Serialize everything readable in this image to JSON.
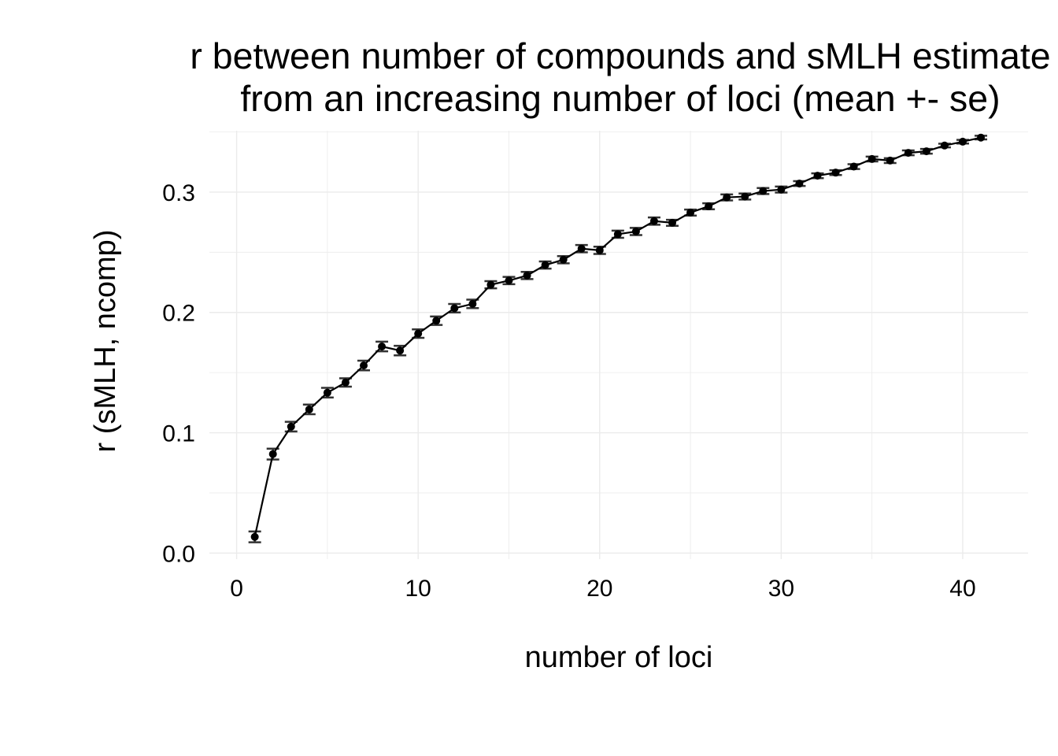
{
  "chart_data": {
    "type": "line",
    "title_lines": [
      "r between number of compounds and sMLH estimate",
      "from an increasing number of loci (mean +- se)"
    ],
    "xlabel": "number of loci",
    "ylabel": "r (sMLH, ncomp)",
    "xlim": [
      -1.5,
      43.6
    ],
    "ylim": [
      -0.005,
      0.351
    ],
    "x_ticks": [
      0,
      10,
      20,
      30,
      40
    ],
    "x_tick_labels": [
      "0",
      "10",
      "20",
      "30",
      "40"
    ],
    "y_ticks": [
      0.0,
      0.1,
      0.2,
      0.3
    ],
    "y_tick_labels": [
      "0.0",
      "0.1",
      "0.2",
      "0.3"
    ],
    "grid": true,
    "legend": "none",
    "colors": {
      "line": "#000000",
      "points": "#000000",
      "error_bars": "#333333",
      "grid": "#ebebeb"
    },
    "series": [
      {
        "x": [
          1,
          2,
          3,
          4,
          5,
          6,
          7,
          8,
          9,
          10,
          11,
          12,
          13,
          14,
          15,
          16,
          17,
          18,
          19,
          20,
          21,
          22,
          23,
          24,
          25,
          26,
          27,
          28,
          29,
          30,
          31,
          32,
          33,
          34,
          35,
          36,
          37,
          38,
          39,
          40,
          41
        ],
        "values": [
          0.0135,
          0.0823,
          0.1051,
          0.1194,
          0.1333,
          0.1418,
          0.1559,
          0.1717,
          0.1683,
          0.1824,
          0.1931,
          0.2035,
          0.2071,
          0.223,
          0.2265,
          0.2307,
          0.2394,
          0.2438,
          0.253,
          0.2516,
          0.265,
          0.2673,
          0.2759,
          0.2745,
          0.283,
          0.2882,
          0.2956,
          0.2963,
          0.3009,
          0.3021,
          0.3071,
          0.3136,
          0.3162,
          0.3212,
          0.3275,
          0.3262,
          0.3326,
          0.3339,
          0.3387,
          0.3419,
          0.3453
        ],
        "se": [
          0.0045,
          0.0045,
          0.004,
          0.004,
          0.004,
          0.0035,
          0.004,
          0.004,
          0.004,
          0.0035,
          0.0035,
          0.0035,
          0.0035,
          0.003,
          0.003,
          0.003,
          0.003,
          0.003,
          0.003,
          0.003,
          0.003,
          0.003,
          0.003,
          0.0025,
          0.0025,
          0.0025,
          0.0025,
          0.0025,
          0.0025,
          0.0025,
          0.002,
          0.002,
          0.002,
          0.002,
          0.002,
          0.002,
          0.002,
          0.002,
          0.0015,
          0.0015,
          0.0015
        ]
      }
    ]
  }
}
